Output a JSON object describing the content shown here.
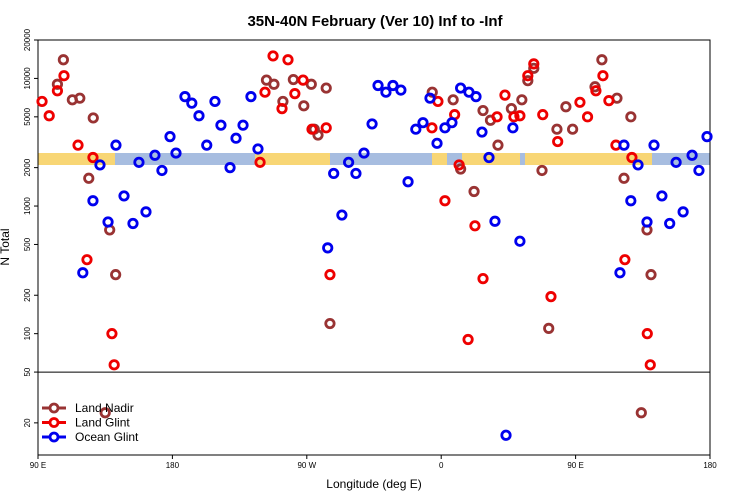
{
  "chart_data": {
    "type": "scatter",
    "title": "35N-40N February (Ver 10)   Inf to -Inf",
    "x_label": "Longitude (deg E)",
    "y_label": "N Total",
    "log_y": true,
    "legend": "lower left",
    "hline": 50,
    "xlim": [
      90,
      540
    ],
    "xticks": [
      {
        "value": 90,
        "label": "90 E"
      },
      180,
      {
        "value": 270,
        "label": "90 W"
      },
      {
        "value": 360,
        "label": "0"
      },
      {
        "value": 450,
        "label": "90 E"
      },
      {
        "value": 540,
        "label": "180"
      }
    ],
    "ylim": [
      11.2,
      20000
    ],
    "yticks": [
      20,
      50,
      100,
      200,
      500,
      1000,
      2000,
      5000,
      10000,
      20000
    ],
    "series": [
      {
        "name": "Land Nadir",
        "color": "#993333",
        "x": [
          103,
          107,
          113,
          118,
          127,
          124,
          138,
          142,
          135,
          243,
          248,
          254,
          261,
          268,
          273,
          275,
          277.5,
          283,
          285.5,
          354,
          368,
          373,
          382,
          388,
          393,
          398,
          407,
          414,
          418,
          422,
          427.5,
          432,
          437.5,
          443.5,
          448,
          463,
          467.6,
          477.7,
          482.4,
          487,
          494,
          500.5,
          497.8
        ],
        "values": [
          9000,
          14000,
          6800,
          7000,
          4900,
          1650,
          650,
          290,
          24,
          9700,
          9000,
          6600,
          9800,
          6100,
          9000,
          4000,
          3600,
          8400,
          120,
          7800,
          6800,
          1950,
          1300,
          5600,
          4700,
          3000,
          5800,
          6800,
          9600,
          12000,
          1900,
          110,
          4000,
          6000,
          4000,
          8600,
          14000,
          7000,
          1650,
          5000,
          24,
          290,
          650
        ]
      },
      {
        "name": "Land Glint",
        "color": "#ee0000",
        "x": [
          92.7,
          97.5,
          103,
          107.4,
          116.8,
          122.8,
          126.8,
          139.5,
          141,
          238.7,
          242,
          247.4,
          253.4,
          257.4,
          262,
          267.5,
          273.5,
          283,
          285.5,
          353.8,
          357.8,
          362.5,
          369,
          372,
          378,
          382.6,
          388,
          397.4,
          402.7,
          408.7,
          412.7,
          418,
          422,
          428,
          433.5,
          438,
          452.9,
          458,
          463.6,
          468.3,
          472.3,
          477,
          483,
          487.7,
          498,
          500
        ],
        "values": [
          6600,
          5100,
          8000,
          10500,
          3000,
          380,
          2400,
          100,
          57,
          2200,
          7800,
          15000,
          5800,
          14000,
          7600,
          9700,
          4000,
          4100,
          290,
          4100,
          6600,
          1100,
          5200,
          2100,
          90,
          700,
          270,
          5000,
          7400,
          5000,
          5100,
          10500,
          13000,
          5200,
          195,
          3200,
          6500,
          5000,
          8000,
          10500,
          6700,
          3000,
          380,
          2400,
          100,
          57
        ]
      },
      {
        "name": "Ocean Glint",
        "color": "#0000ee",
        "x": [
          120,
          126.8,
          131.5,
          136.9,
          142.2,
          147.6,
          153.6,
          162.3,
          157.6,
          168.3,
          173,
          178.4,
          182.4,
          188.4,
          193,
          197.8,
          203,
          208.5,
          212.5,
          218.6,
          222.6,
          227.3,
          232.6,
          237.3,
          284,
          288,
          293.5,
          298,
          302.9,
          308.3,
          313.7,
          317.7,
          323,
          327.7,
          333,
          337.8,
          343,
          347.8,
          352.5,
          357.2,
          362.5,
          367.2,
          373,
          378.6,
          383.3,
          387.3,
          392,
          396,
          403.4,
          408,
          412.7,
          479.7,
          482.4,
          487,
          491.8,
          497.8,
          502.5,
          507.8,
          513,
          522,
          517.3,
          528,
          532.6,
          538
        ],
        "values": [
          300,
          1100,
          2100,
          750,
          3000,
          1200,
          730,
          900,
          2200,
          2500,
          1900,
          3500,
          2600,
          7200,
          6400,
          5100,
          3000,
          6600,
          4300,
          2000,
          3400,
          4300,
          7200,
          2800,
          470,
          1800,
          850,
          2200,
          1800,
          2600,
          4400,
          8800,
          7800,
          8800,
          8100,
          1550,
          4000,
          4500,
          7000,
          3100,
          4100,
          4500,
          8400,
          7800,
          7200,
          3800,
          2400,
          760,
          16,
          4100,
          530,
          300,
          3000,
          1100,
          2100,
          750,
          3000,
          1200,
          730,
          900,
          2200,
          2500,
          1900,
          3500
        ]
      }
    ]
  }
}
